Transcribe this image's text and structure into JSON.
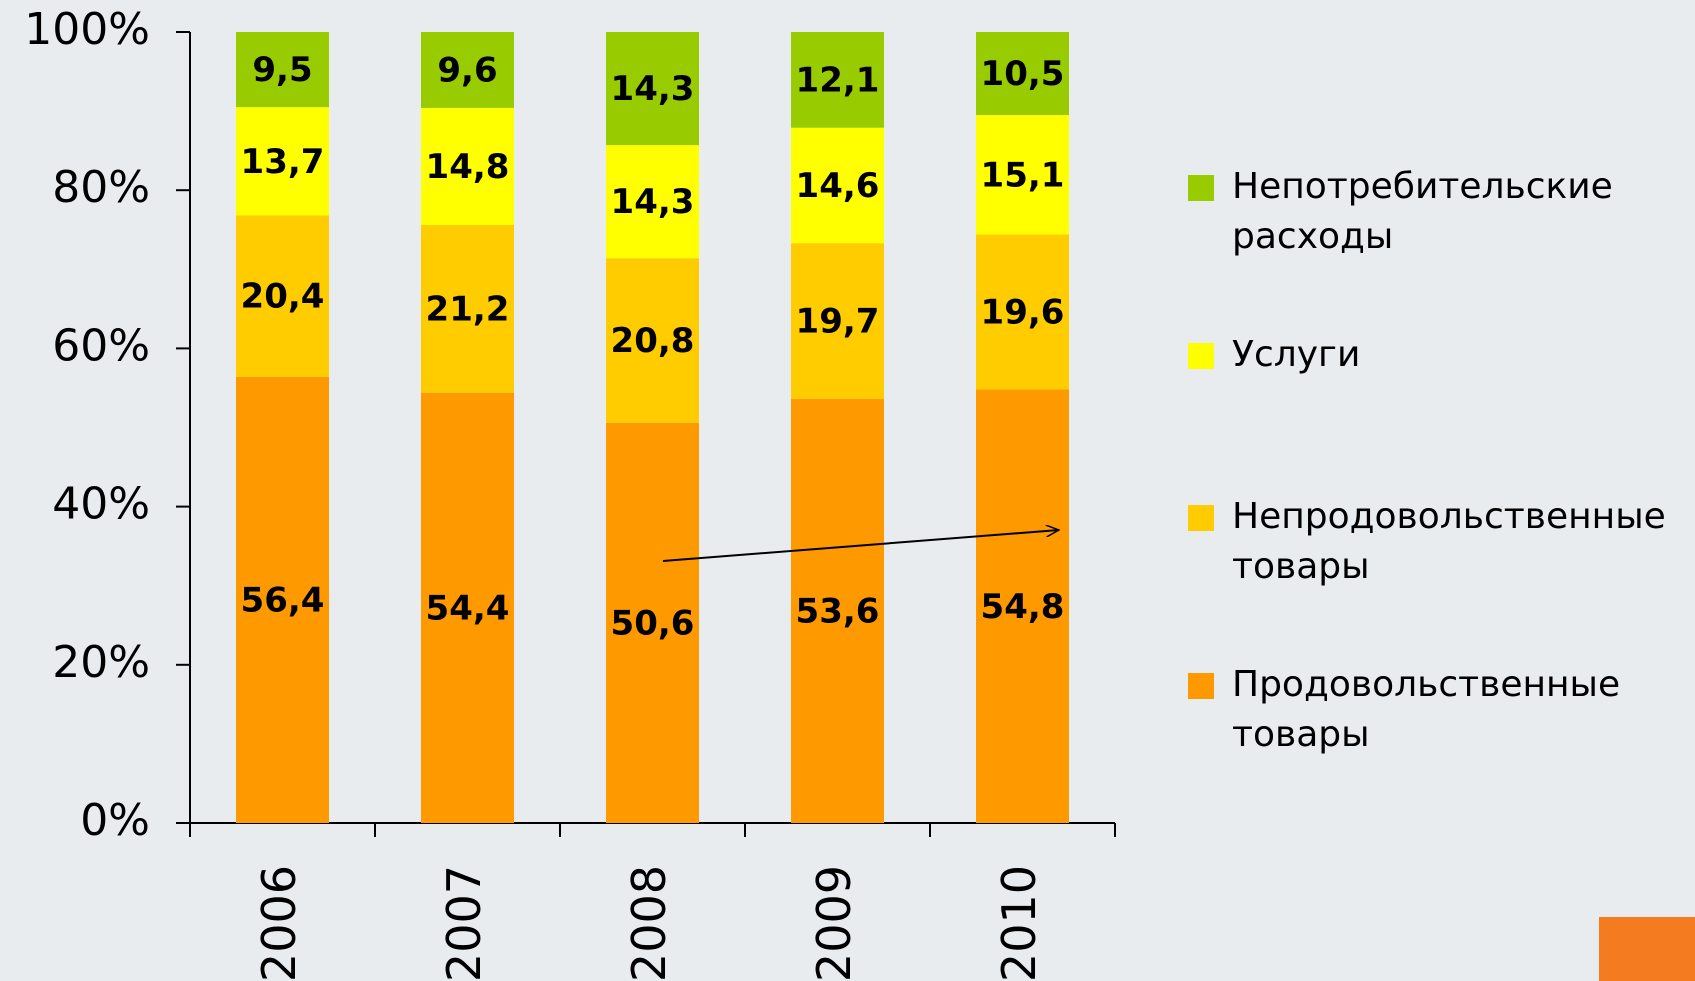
{
  "chart_data": {
    "type": "bar",
    "stacked": true,
    "categories": [
      "2006",
      "2007",
      "2008",
      "2009",
      "2010"
    ],
    "series": [
      {
        "name": "Продовольственные товары",
        "color": "#ff9900",
        "values": [
          56.4,
          54.4,
          50.6,
          53.6,
          54.8
        ],
        "value_labels": [
          "56,4",
          "54,4",
          "50,6",
          "53,6",
          "54,8"
        ]
      },
      {
        "name": "Непродовольственные товары",
        "color": "#ffcc00",
        "values": [
          20.4,
          21.2,
          20.8,
          19.7,
          19.6
        ],
        "value_labels": [
          "20,4",
          "21,2",
          "20,8",
          "19,7",
          "19,6"
        ]
      },
      {
        "name": "Услуги",
        "color": "#ffff00",
        "values": [
          13.7,
          14.8,
          14.3,
          14.6,
          15.1
        ],
        "value_labels": [
          "13,7",
          "14,8",
          "14,3",
          "14,6",
          "15,1"
        ]
      },
      {
        "name": "Непотребительские расходы",
        "color": "#99cc00",
        "values": [
          9.5,
          9.6,
          14.3,
          12.1,
          10.5
        ],
        "value_labels": [
          "9,5",
          "9,6",
          "14,3",
          "12,1",
          "10,5"
        ]
      }
    ],
    "ylim": [
      0,
      100
    ],
    "yticks": [
      {
        "value": 0,
        "label": "0%"
      },
      {
        "value": 20,
        "label": "20%"
      },
      {
        "value": 40,
        "label": "40%"
      },
      {
        "value": 60,
        "label": "60%"
      },
      {
        "value": 80,
        "label": "80%"
      },
      {
        "value": 100,
        "label": "100%"
      }
    ],
    "legend": "right"
  }
}
